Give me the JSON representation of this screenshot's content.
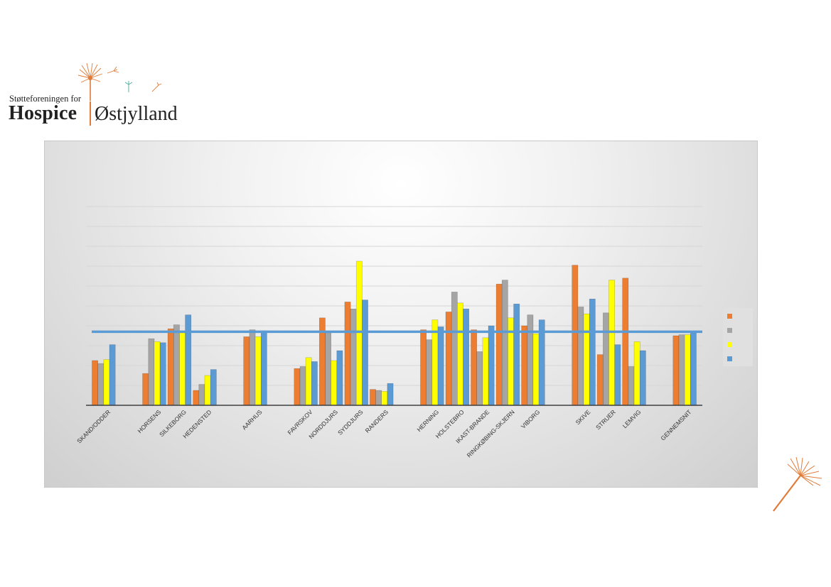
{
  "logo": {
    "tagline": "Støtteforeningen for",
    "name_left": "Hospice",
    "name_right": "Østjylland"
  },
  "colors": {
    "orange": "#ed7d31",
    "gray": "#a5a5a5",
    "yellow": "#ffff00",
    "blue": "#5b9bd5",
    "average_line": "#5b9bd5",
    "logo_accent": "#e07b39"
  },
  "chart_data": {
    "type": "bar",
    "title": "",
    "xlabel": "",
    "ylabel": "",
    "ylim": [
      0,
      10
    ],
    "grid": true,
    "legend_position": "right",
    "categories": [
      "SKAND/ODDER",
      "HORSENS",
      "SILKEBORG",
      "HEDENSTED",
      "AARHUS",
      "FAVRSKOV",
      "NORDDJURS",
      "SYDDJURS",
      "RANDERS",
      "HERNING",
      "HOLSTEBRO",
      "IKAST-BRANDE",
      "RINGKØBING-SKJERN",
      "VIBORG",
      "SKIVE",
      "STRUER",
      "LEMVIG",
      "GENNEMSNIT"
    ],
    "series": [
      {
        "name": "",
        "color": "#ed7d31",
        "values": [
          2.25,
          1.6,
          3.85,
          0.75,
          3.45,
          1.85,
          4.4,
          5.2,
          0.8,
          3.8,
          4.7,
          3.8,
          6.1,
          4.0,
          7.05,
          2.55,
          6.4,
          3.5
        ]
      },
      {
        "name": "",
        "color": "#a5a5a5",
        "values": [
          2.1,
          3.35,
          4.05,
          1.05,
          3.8,
          1.95,
          3.65,
          4.85,
          0.75,
          3.3,
          5.7,
          2.7,
          6.3,
          4.55,
          4.95,
          4.65,
          1.95,
          3.55
        ]
      },
      {
        "name": "",
        "color": "#ffff00",
        "values": [
          2.3,
          3.2,
          3.65,
          1.5,
          3.45,
          2.4,
          2.25,
          7.25,
          0.7,
          4.3,
          5.15,
          3.4,
          4.4,
          3.6,
          4.6,
          6.3,
          3.2,
          3.55
        ]
      },
      {
        "name": "",
        "color": "#5b9bd5",
        "values": [
          3.05,
          3.15,
          4.55,
          1.8,
          3.75,
          2.2,
          2.75,
          5.3,
          1.1,
          3.95,
          4.85,
          4.0,
          5.1,
          4.3,
          5.35,
          3.05,
          2.75,
          3.65
        ]
      }
    ],
    "average_line": 3.7,
    "groups": [
      [
        0
      ],
      [
        1,
        2,
        3
      ],
      [
        4
      ],
      [
        5,
        6,
        7,
        8
      ],
      [
        9,
        10,
        11,
        12,
        13
      ],
      [
        14,
        15,
        16
      ],
      [
        17
      ]
    ]
  }
}
